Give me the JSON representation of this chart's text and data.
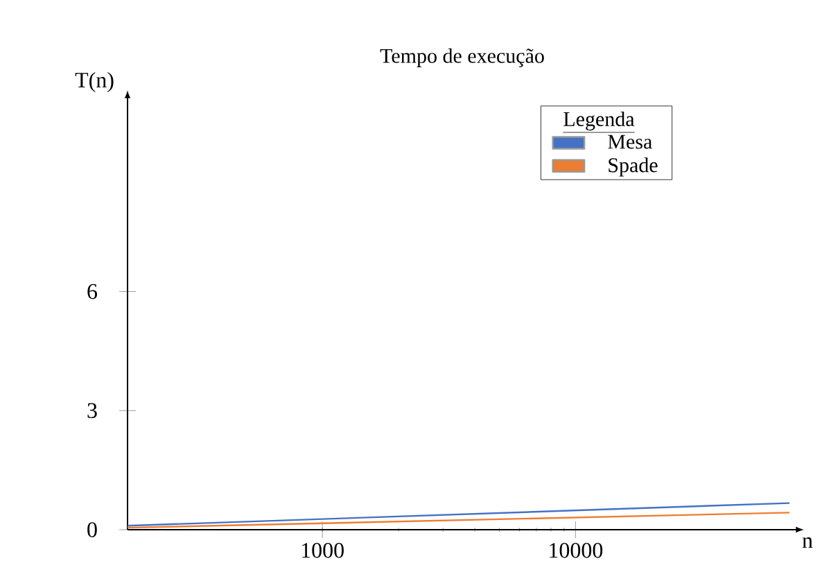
{
  "chart_data": {
    "type": "line",
    "title": "Tempo de execução",
    "xlabel": "n",
    "ylabel": "T(n)",
    "log": "x",
    "xlim": [
      170,
      75000
    ],
    "xticks": [
      1000,
      10000
    ],
    "ylim": [
      0,
      10.9
    ],
    "yticks": [
      0,
      3,
      6
    ],
    "grid": false,
    "x": [
      170,
      70000
    ],
    "legend": "top right",
    "legend_title": "Legenda",
    "series": [
      {
        "name": "Mesa",
        "color": "#4472c4",
        "values": [
          0.1,
          0.67
        ]
      },
      {
        "name": "Spade",
        "color": "#ed7d31",
        "values": [
          0.05,
          0.43
        ]
      }
    ]
  }
}
